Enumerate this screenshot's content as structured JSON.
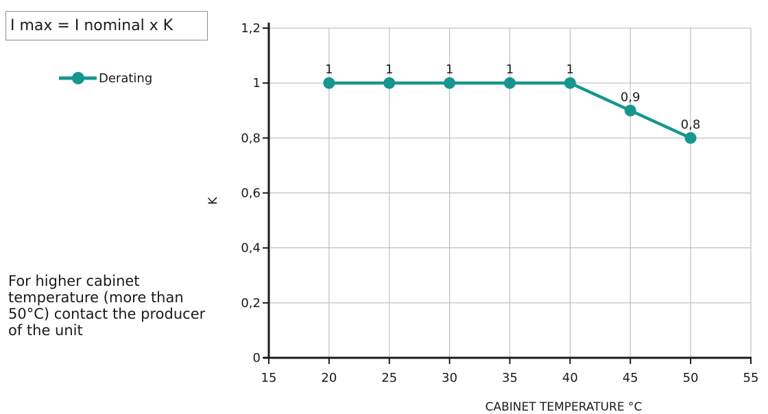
{
  "formula": "I max = I nominal x K",
  "note": "For higher cabinet temperature (more than 50°C) contact the producer of the unit",
  "colors": {
    "series": "#16968e",
    "grid": "#b3b3b3",
    "axis": "#1a1a1a"
  },
  "chart_data": {
    "type": "line",
    "title": "",
    "xlabel": "CABINET TEMPERATURE °C",
    "ylabel": "K",
    "xlim": [
      15,
      55
    ],
    "ylim": [
      0,
      1.2
    ],
    "xticks": [
      15,
      20,
      25,
      30,
      35,
      40,
      45,
      50,
      55
    ],
    "yticks": [
      0,
      0.2,
      0.4,
      0.6,
      0.8,
      1,
      1.2
    ],
    "xtick_labels": [
      "15",
      "20",
      "25",
      "30",
      "35",
      "40",
      "45",
      "50",
      "55"
    ],
    "ytick_labels": [
      "0",
      "0,2",
      "0,4",
      "0,6",
      "0,8",
      "1",
      "1,2"
    ],
    "grid": true,
    "legend_position": "top-left",
    "series": [
      {
        "name": "Derating",
        "x": [
          20,
          25,
          30,
          35,
          40,
          45,
          50
        ],
        "y": [
          1,
          1,
          1,
          1,
          1,
          0.9,
          0.8
        ],
        "labels": [
          "1",
          "1",
          "1",
          "1",
          "1",
          "0,9",
          "0,8"
        ]
      }
    ]
  }
}
